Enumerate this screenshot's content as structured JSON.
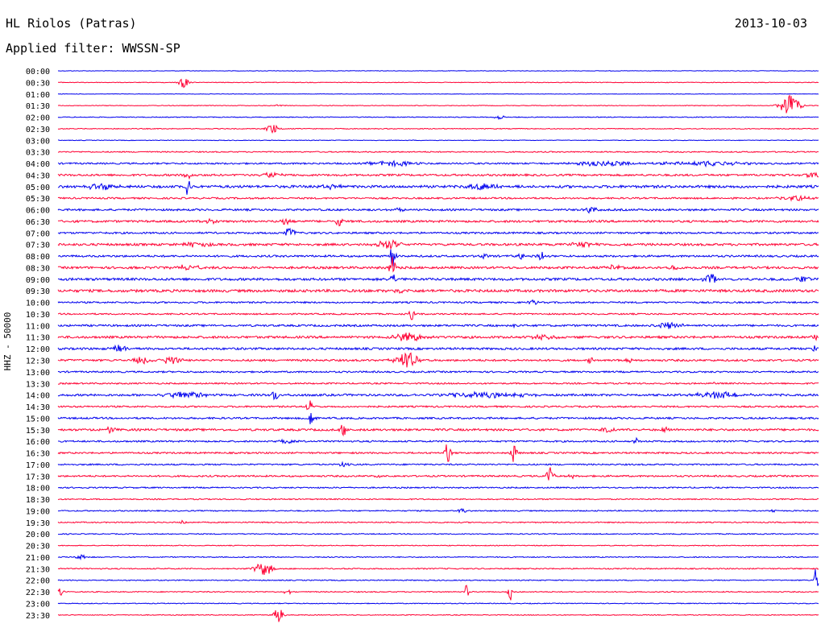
{
  "header": {
    "station": "HL Riolos (Patras)",
    "date": "2013-10-03",
    "filter_label": "Applied filter:",
    "filter_value": "WWSSN-SP"
  },
  "chart_data": {
    "type": "line",
    "title": "HL Riolos (Patras)",
    "ylabel": "HHZ - 50000",
    "colors": {
      "even_row": "#0000ee",
      "odd_row": "#ff0033"
    },
    "rows": [
      {
        "label": "00:00",
        "noise": 0.3,
        "events": []
      },
      {
        "label": "00:30",
        "noise": 0.4,
        "events": [
          {
            "t": 0.165,
            "a": 7,
            "d": 0.006
          }
        ]
      },
      {
        "label": "01:00",
        "noise": 0.3,
        "events": []
      },
      {
        "label": "01:30",
        "noise": 0.4,
        "events": [
          {
            "t": 0.962,
            "a": 14,
            "d": 0.012
          },
          {
            "t": 0.29,
            "a": 2,
            "d": 0.004
          }
        ]
      },
      {
        "label": "02:00",
        "noise": 0.5,
        "events": [
          {
            "t": 0.58,
            "a": 3,
            "d": 0.006
          }
        ]
      },
      {
        "label": "02:30",
        "noise": 0.5,
        "events": [
          {
            "t": 0.282,
            "a": 6,
            "d": 0.008
          }
        ]
      },
      {
        "label": "03:00",
        "noise": 0.4,
        "events": []
      },
      {
        "label": "03:30",
        "noise": 0.7,
        "events": []
      },
      {
        "label": "04:00",
        "noise": 1.0,
        "events": [
          {
            "t": 0.44,
            "a": 3,
            "d": 0.03
          },
          {
            "t": 0.72,
            "a": 3,
            "d": 0.04
          },
          {
            "t": 0.85,
            "a": 3,
            "d": 0.05
          }
        ]
      },
      {
        "label": "04:30",
        "noise": 1.2,
        "events": [
          {
            "t": 0.17,
            "a": 8,
            "d": 0.004
          },
          {
            "t": 0.28,
            "a": 3,
            "d": 0.015
          },
          {
            "t": 0.99,
            "a": 4,
            "d": 0.01
          }
        ]
      },
      {
        "label": "05:00",
        "noise": 1.6,
        "events": [
          {
            "t": 0.17,
            "a": 12,
            "d": 0.004
          },
          {
            "t": 0.06,
            "a": 4,
            "d": 0.02
          },
          {
            "t": 0.56,
            "a": 4,
            "d": 0.02
          },
          {
            "t": 0.36,
            "a": 3,
            "d": 0.01
          }
        ]
      },
      {
        "label": "05:30",
        "noise": 1.0,
        "events": [
          {
            "t": 0.97,
            "a": 3,
            "d": 0.02
          }
        ]
      },
      {
        "label": "06:00",
        "noise": 1.2,
        "events": [
          {
            "t": 0.7,
            "a": 4,
            "d": 0.008
          },
          {
            "t": 0.45,
            "a": 2,
            "d": 0.01
          }
        ]
      },
      {
        "label": "06:30",
        "noise": 1.3,
        "events": [
          {
            "t": 0.3,
            "a": 5,
            "d": 0.006
          },
          {
            "t": 0.37,
            "a": 5,
            "d": 0.006
          },
          {
            "t": 0.2,
            "a": 3,
            "d": 0.01
          }
        ]
      },
      {
        "label": "07:00",
        "noise": 1.1,
        "events": [
          {
            "t": 0.305,
            "a": 7,
            "d": 0.006
          }
        ]
      },
      {
        "label": "07:30",
        "noise": 1.4,
        "events": [
          {
            "t": 0.435,
            "a": 6,
            "d": 0.015
          },
          {
            "t": 0.18,
            "a": 3,
            "d": 0.02
          },
          {
            "t": 0.69,
            "a": 3,
            "d": 0.02
          }
        ]
      },
      {
        "label": "08:00",
        "noise": 1.2,
        "events": [
          {
            "t": 0.44,
            "a": 16,
            "d": 0.004
          },
          {
            "t": 0.635,
            "a": 9,
            "d": 0.004
          },
          {
            "t": 0.61,
            "a": 5,
            "d": 0.004
          },
          {
            "t": 0.56,
            "a": 3,
            "d": 0.004
          }
        ]
      },
      {
        "label": "08:30",
        "noise": 1.4,
        "events": [
          {
            "t": 0.44,
            "a": 14,
            "d": 0.004
          },
          {
            "t": 0.73,
            "a": 3,
            "d": 0.01
          },
          {
            "t": 0.81,
            "a": 4,
            "d": 0.006
          },
          {
            "t": 0.17,
            "a": 3,
            "d": 0.02
          }
        ]
      },
      {
        "label": "09:00",
        "noise": 1.5,
        "events": [
          {
            "t": 0.44,
            "a": 8,
            "d": 0.004
          },
          {
            "t": 0.86,
            "a": 6,
            "d": 0.01
          },
          {
            "t": 0.98,
            "a": 5,
            "d": 0.008
          }
        ]
      },
      {
        "label": "09:30",
        "noise": 1.6,
        "events": [
          {
            "t": 0.45,
            "a": 3,
            "d": 0.01
          }
        ]
      },
      {
        "label": "10:00",
        "noise": 1.0,
        "events": [
          {
            "t": 0.625,
            "a": 3,
            "d": 0.006
          }
        ]
      },
      {
        "label": "10:30",
        "noise": 0.9,
        "events": [
          {
            "t": 0.465,
            "a": 9,
            "d": 0.003
          }
        ]
      },
      {
        "label": "11:00",
        "noise": 1.2,
        "events": [
          {
            "t": 0.6,
            "a": 3,
            "d": 0.006
          },
          {
            "t": 0.8,
            "a": 4,
            "d": 0.02
          }
        ]
      },
      {
        "label": "11:30",
        "noise": 1.4,
        "events": [
          {
            "t": 0.46,
            "a": 5,
            "d": 0.02
          },
          {
            "t": 0.64,
            "a": 3,
            "d": 0.015
          },
          {
            "t": 0.995,
            "a": 4,
            "d": 0.004
          }
        ]
      },
      {
        "label": "12:00",
        "noise": 1.3,
        "events": [
          {
            "t": 0.08,
            "a": 6,
            "d": 0.008
          },
          {
            "t": 0.995,
            "a": 6,
            "d": 0.003
          }
        ]
      },
      {
        "label": "12:30",
        "noise": 1.2,
        "events": [
          {
            "t": 0.458,
            "a": 11,
            "d": 0.014
          },
          {
            "t": 0.11,
            "a": 5,
            "d": 0.01
          },
          {
            "t": 0.15,
            "a": 5,
            "d": 0.012
          },
          {
            "t": 0.75,
            "a": 5,
            "d": 0.004
          },
          {
            "t": 0.7,
            "a": 3,
            "d": 0.004
          }
        ]
      },
      {
        "label": "13:00",
        "noise": 1.0,
        "events": []
      },
      {
        "label": "13:30",
        "noise": 0.9,
        "events": [
          {
            "t": 0.86,
            "a": 3,
            "d": 0.004
          }
        ]
      },
      {
        "label": "14:00",
        "noise": 1.3,
        "events": [
          {
            "t": 0.17,
            "a": 4,
            "d": 0.03
          },
          {
            "t": 0.285,
            "a": 9,
            "d": 0.004
          },
          {
            "t": 0.56,
            "a": 3,
            "d": 0.06
          },
          {
            "t": 0.87,
            "a": 4,
            "d": 0.03
          }
        ]
      },
      {
        "label": "14:30",
        "noise": 1.0,
        "events": [
          {
            "t": 0.33,
            "a": 8,
            "d": 0.004
          }
        ]
      },
      {
        "label": "15:00",
        "noise": 1.1,
        "events": [
          {
            "t": 0.333,
            "a": 12,
            "d": 0.004
          }
        ]
      },
      {
        "label": "15:30",
        "noise": 1.3,
        "events": [
          {
            "t": 0.375,
            "a": 9,
            "d": 0.005
          },
          {
            "t": 0.07,
            "a": 4,
            "d": 0.006
          },
          {
            "t": 0.72,
            "a": 3,
            "d": 0.01
          },
          {
            "t": 0.8,
            "a": 3,
            "d": 0.006
          }
        ]
      },
      {
        "label": "16:00",
        "noise": 1.0,
        "events": [
          {
            "t": 0.76,
            "a": 4,
            "d": 0.004
          },
          {
            "t": 0.3,
            "a": 3,
            "d": 0.01
          }
        ]
      },
      {
        "label": "16:30",
        "noise": 1.0,
        "events": [
          {
            "t": 0.512,
            "a": 14,
            "d": 0.004
          },
          {
            "t": 0.6,
            "a": 14,
            "d": 0.004
          }
        ]
      },
      {
        "label": "17:00",
        "noise": 0.9,
        "events": [
          {
            "t": 0.375,
            "a": 3,
            "d": 0.006
          }
        ]
      },
      {
        "label": "17:30",
        "noise": 1.0,
        "events": [
          {
            "t": 0.647,
            "a": 11,
            "d": 0.005
          },
          {
            "t": 0.42,
            "a": 3,
            "d": 0.004
          },
          {
            "t": 0.675,
            "a": 3,
            "d": 0.004
          }
        ]
      },
      {
        "label": "18:00",
        "noise": 0.8,
        "events": []
      },
      {
        "label": "18:30",
        "noise": 0.7,
        "events": []
      },
      {
        "label": "19:00",
        "noise": 0.7,
        "events": [
          {
            "t": 0.53,
            "a": 3,
            "d": 0.006
          },
          {
            "t": 0.94,
            "a": 3,
            "d": 0.004
          }
        ]
      },
      {
        "label": "19:30",
        "noise": 0.7,
        "events": [
          {
            "t": 0.165,
            "a": 4,
            "d": 0.004
          }
        ]
      },
      {
        "label": "20:00",
        "noise": 0.6,
        "events": []
      },
      {
        "label": "20:30",
        "noise": 0.5,
        "events": []
      },
      {
        "label": "21:00",
        "noise": 0.6,
        "events": [
          {
            "t": 0.03,
            "a": 3,
            "d": 0.006
          }
        ]
      },
      {
        "label": "21:30",
        "noise": 0.7,
        "events": [
          {
            "t": 0.27,
            "a": 8,
            "d": 0.012
          }
        ]
      },
      {
        "label": "22:00",
        "noise": 0.6,
        "events": [
          {
            "t": 0.997,
            "a": 16,
            "d": 0.003
          }
        ]
      },
      {
        "label": "22:30",
        "noise": 0.6,
        "events": [
          {
            "t": 0.003,
            "a": 5,
            "d": 0.004
          },
          {
            "t": 0.302,
            "a": 4,
            "d": 0.004
          },
          {
            "t": 0.537,
            "a": 9,
            "d": 0.003
          },
          {
            "t": 0.595,
            "a": 14,
            "d": 0.003
          }
        ]
      },
      {
        "label": "23:00",
        "noise": 0.5,
        "events": []
      },
      {
        "label": "23:30",
        "noise": 0.5,
        "events": [
          {
            "t": 0.29,
            "a": 11,
            "d": 0.006
          }
        ]
      }
    ]
  }
}
